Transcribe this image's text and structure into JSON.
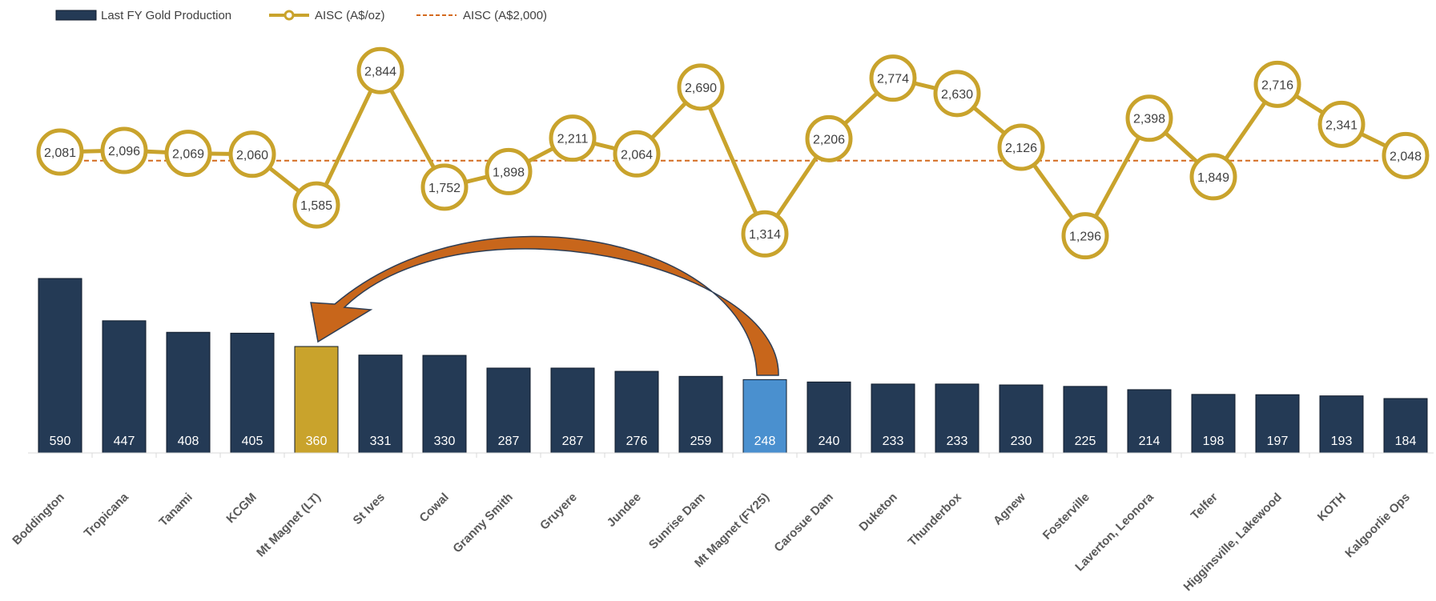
{
  "chart_data": {
    "type": "bar",
    "categories": [
      "Boddington",
      "Tropicana",
      "Tanami",
      "KCGM",
      "Mt Magnet (LT)",
      "St Ives",
      "Cowal",
      "Granny Smith",
      "Gruyere",
      "Jundee",
      "Sunrise Dam",
      "Mt Magnet (FY25)",
      "Carosue Dam",
      "Duketon",
      "Thunderbox",
      "Agnew",
      "Fosterville",
      "Laverton, Leonora",
      "Telfer",
      "Higginsville, Lakewood",
      "KOTH",
      "Kalgoorlie Ops"
    ],
    "series": [
      {
        "name": "Last FY Gold Production",
        "type": "bar",
        "values": [
          590,
          447,
          408,
          405,
          360,
          331,
          330,
          287,
          287,
          276,
          259,
          248,
          240,
          233,
          233,
          230,
          225,
          214,
          198,
          197,
          193,
          184
        ],
        "value_labels": [
          "590",
          "447",
          "408",
          "405",
          "360",
          "331",
          "330",
          "287",
          "287",
          "276",
          "259",
          "248",
          "240",
          "233",
          "233",
          "230",
          "225",
          "214",
          "198",
          "197",
          "193",
          "184"
        ]
      },
      {
        "name": "AISC (A$/oz)",
        "type": "line",
        "values": [
          2081,
          2096,
          2069,
          2060,
          1585,
          2844,
          1752,
          1898,
          2211,
          2064,
          2690,
          1314,
          2206,
          2774,
          2630,
          2126,
          1296,
          2398,
          1849,
          2716,
          2341,
          2048
        ],
        "value_labels": [
          "2,081",
          "2,096",
          "2,069",
          "2,060",
          "1,585",
          "2,844",
          "1,752",
          "1,898",
          "2,211",
          "2,064",
          "2,690",
          "1,314",
          "2,206",
          "2,774",
          "2,630",
          "2,126",
          "1,296",
          "2,398",
          "1,849",
          "2,716",
          "2,341",
          "2,048"
        ]
      },
      {
        "name": "AISC (A$2,000)",
        "type": "reference-line",
        "value": 2000
      }
    ],
    "legend_position": "top-left",
    "grid": false,
    "annotation": "curved arrow from Mt Magnet (FY25) to Mt Magnet (LT)"
  },
  "colors": {
    "bar": "#243a55",
    "bar_highlight_lt": "#c9a32c",
    "bar_highlight_fy25": "#4a90cf",
    "aisc_line": "#c9a32c",
    "reference_line": "#d46a1e",
    "arrow": "#c8661b",
    "arrow_stroke": "#2e3e55"
  },
  "highlight": {
    "lt_index": 4,
    "fy25_index": 11
  }
}
